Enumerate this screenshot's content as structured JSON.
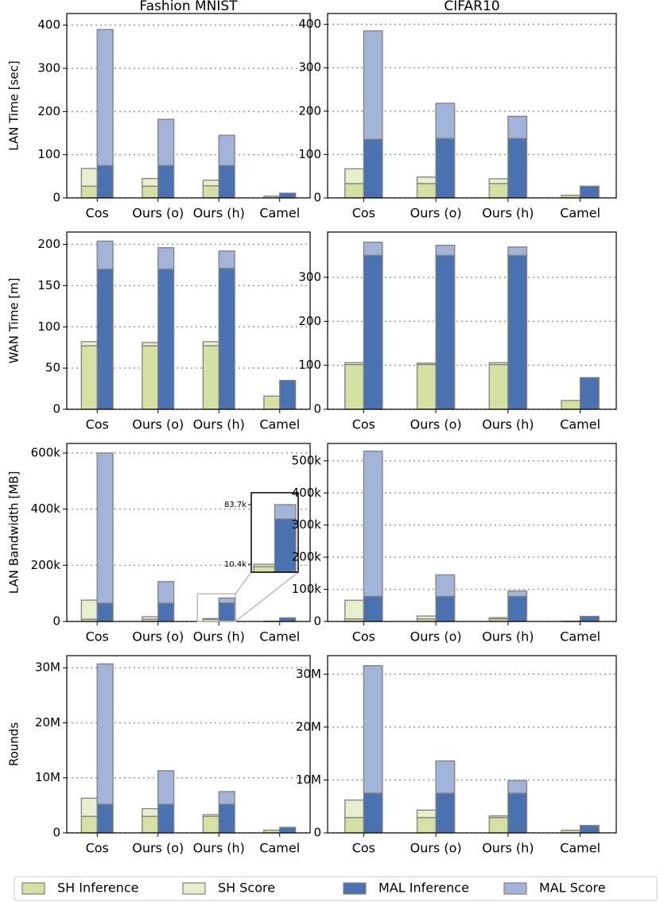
{
  "chart_data": [
    {
      "type": "bar",
      "title": "Fashion MNIST",
      "ylabel": "LAN Time [sec]",
      "categories": [
        "Cos",
        "Ours (o)",
        "Ours (h)",
        "Camel"
      ],
      "series": [
        {
          "name": "SH Inference",
          "color": "#d5e1a3",
          "values": [
            27,
            27,
            28,
            4
          ]
        },
        {
          "name": "SH Score",
          "color": "#e8efcc",
          "values": [
            41,
            18,
            13,
            0
          ]
        },
        {
          "name": "MAL Inference",
          "color": "#4a72b0",
          "values": [
            75,
            75,
            75,
            11
          ]
        },
        {
          "name": "MAL Score",
          "color": "#a3b4d9",
          "values": [
            315,
            107,
            70,
            0
          ]
        }
      ],
      "ylim": [
        0,
        427
      ],
      "yticks": [
        0,
        100,
        200,
        300,
        400
      ],
      "grid": true
    },
    {
      "type": "bar",
      "title": "CIFAR10",
      "categories": [
        "Cos",
        "Ours (o)",
        "Ours (h)",
        "Camel"
      ],
      "series": [
        {
          "name": "SH Inference",
          "color": "#d5e1a3",
          "values": [
            33,
            33,
            33,
            6
          ]
        },
        {
          "name": "SH Score",
          "color": "#e8efcc",
          "values": [
            34,
            15,
            11,
            0
          ]
        },
        {
          "name": "MAL Inference",
          "color": "#4a72b0",
          "values": [
            135,
            137,
            137,
            27
          ]
        },
        {
          "name": "MAL Score",
          "color": "#a3b4d9",
          "values": [
            250,
            81,
            51,
            0
          ]
        }
      ],
      "ylim": [
        0,
        425
      ],
      "yticks": [
        0,
        100,
        200,
        300,
        400
      ],
      "grid": true
    },
    {
      "type": "bar",
      "ylabel": "WAN Time [m]",
      "categories": [
        "Cos",
        "Ours (o)",
        "Ours (h)",
        "Camel"
      ],
      "series": [
        {
          "name": "SH Inference",
          "color": "#d5e1a3",
          "values": [
            77,
            77,
            77,
            16
          ]
        },
        {
          "name": "SH Score",
          "color": "#e8efcc",
          "values": [
            5,
            4,
            5,
            0
          ]
        },
        {
          "name": "MAL Inference",
          "color": "#4a72b0",
          "values": [
            170,
            170,
            171,
            35
          ]
        },
        {
          "name": "MAL Score",
          "color": "#a3b4d9",
          "values": [
            34,
            26,
            21,
            0
          ]
        }
      ],
      "ylim": [
        0,
        215
      ],
      "yticks": [
        0,
        50,
        100,
        150,
        200
      ],
      "grid": true
    },
    {
      "type": "bar",
      "categories": [
        "Cos",
        "Ours (o)",
        "Ours (h)",
        "Camel"
      ],
      "series": [
        {
          "name": "SH Inference",
          "color": "#d5e1a3",
          "values": [
            102,
            102,
            102,
            20
          ]
        },
        {
          "name": "SH Score",
          "color": "#e8efcc",
          "values": [
            4,
            3,
            4,
            0
          ]
        },
        {
          "name": "MAL Inference",
          "color": "#4a72b0",
          "values": [
            350,
            350,
            350,
            72
          ]
        },
        {
          "name": "MAL Score",
          "color": "#a3b4d9",
          "values": [
            30,
            23,
            19,
            0
          ]
        }
      ],
      "ylim": [
        0,
        403
      ],
      "yticks": [
        0,
        100,
        200,
        300
      ],
      "grid": true
    },
    {
      "type": "bar",
      "ylabel": "LAN Bandwidth [MB]",
      "categories": [
        "Cos",
        "Ours (o)",
        "Ours (h)",
        "Camel"
      ],
      "series": [
        {
          "name": "SH Inference",
          "color": "#d5e1a3",
          "values": [
            8000,
            8000,
            7500,
            1000
          ]
        },
        {
          "name": "SH Score",
          "color": "#e8efcc",
          "values": [
            68000,
            9000,
            2900,
            0
          ]
        },
        {
          "name": "MAL Inference",
          "color": "#4a72b0",
          "values": [
            65000,
            65000,
            66100,
            13000
          ]
        },
        {
          "name": "MAL Score",
          "color": "#a3b4d9",
          "values": [
            535000,
            77000,
            17600,
            0
          ]
        }
      ],
      "ylim": [
        0,
        634000
      ],
      "yticks": [
        0,
        {
          "value": 200000,
          "label": "200k"
        },
        {
          "value": 400000,
          "label": "400k"
        },
        {
          "value": 600000,
          "label": "600k"
        }
      ],
      "grid": true,
      "inset": {
        "ylim": [
          600,
          98400
        ],
        "yticks": [
          {
            "value": 10400,
            "label": "10.4k"
          },
          {
            "value": 83700,
            "label": "83.7k"
          }
        ]
      }
    },
    {
      "type": "bar",
      "categories": [
        "Cos",
        "Ours (o)",
        "Ours (h)",
        "Camel"
      ],
      "series": [
        {
          "name": "SH Inference",
          "color": "#d5e1a3",
          "values": [
            8000,
            8000,
            8000,
            1000
          ]
        },
        {
          "name": "SH Score",
          "color": "#e8efcc",
          "values": [
            58000,
            9000,
            4000,
            0
          ]
        },
        {
          "name": "MAL Inference",
          "color": "#4a72b0",
          "values": [
            78000,
            78000,
            78000,
            16000
          ]
        },
        {
          "name": "MAL Score",
          "color": "#a3b4d9",
          "values": [
            452000,
            67000,
            17000,
            0
          ]
        }
      ],
      "ylim": [
        0,
        554000
      ],
      "yticks": [
        0,
        {
          "value": 100000,
          "label": "100k"
        },
        {
          "value": 200000,
          "label": "200k"
        },
        {
          "value": 300000,
          "label": "300k"
        },
        {
          "value": 400000,
          "label": "400k"
        },
        {
          "value": 500000,
          "label": "500k"
        }
      ],
      "grid": true
    },
    {
      "type": "bar",
      "ylabel": "Rounds",
      "categories": [
        "Cos",
        "Ours (o)",
        "Ours (h)",
        "Camel"
      ],
      "series": [
        {
          "name": "SH Inference",
          "color": "#d5e1a3",
          "values": [
            3000000,
            3000000,
            3000000,
            500000
          ]
        },
        {
          "name": "SH Score",
          "color": "#e8efcc",
          "values": [
            3300000,
            1400000,
            300000,
            0
          ]
        },
        {
          "name": "MAL Inference",
          "color": "#4a72b0",
          "values": [
            5200000,
            5200000,
            5200000,
            1000000
          ]
        },
        {
          "name": "MAL Score",
          "color": "#a3b4d9",
          "values": [
            25500000,
            6100000,
            2300000,
            0
          ]
        }
      ],
      "ylim": [
        0,
        32200000
      ],
      "yticks": [
        0,
        {
          "value": 10000000,
          "label": "10M"
        },
        {
          "value": 20000000,
          "label": "20M"
        },
        {
          "value": 30000000,
          "label": "30M"
        }
      ],
      "grid": true
    },
    {
      "type": "bar",
      "categories": [
        "Cos",
        "Ours (o)",
        "Ours (h)",
        "Camel"
      ],
      "series": [
        {
          "name": "SH Inference",
          "color": "#d5e1a3",
          "values": [
            2900000,
            2900000,
            2900000,
            500000
          ]
        },
        {
          "name": "SH Score",
          "color": "#e8efcc",
          "values": [
            3300000,
            1400000,
            300000,
            0
          ]
        },
        {
          "name": "MAL Inference",
          "color": "#4a72b0",
          "values": [
            7500000,
            7500000,
            7500000,
            1400000
          ]
        },
        {
          "name": "MAL Score",
          "color": "#a3b4d9",
          "values": [
            24100000,
            6100000,
            2400000,
            0
          ]
        }
      ],
      "ylim": [
        0,
        33500000
      ],
      "yticks": [
        0,
        {
          "value": 10000000,
          "label": "10M"
        },
        {
          "value": 20000000,
          "label": "20M"
        },
        {
          "value": 30000000,
          "label": "30M"
        }
      ],
      "grid": true
    }
  ]
}
